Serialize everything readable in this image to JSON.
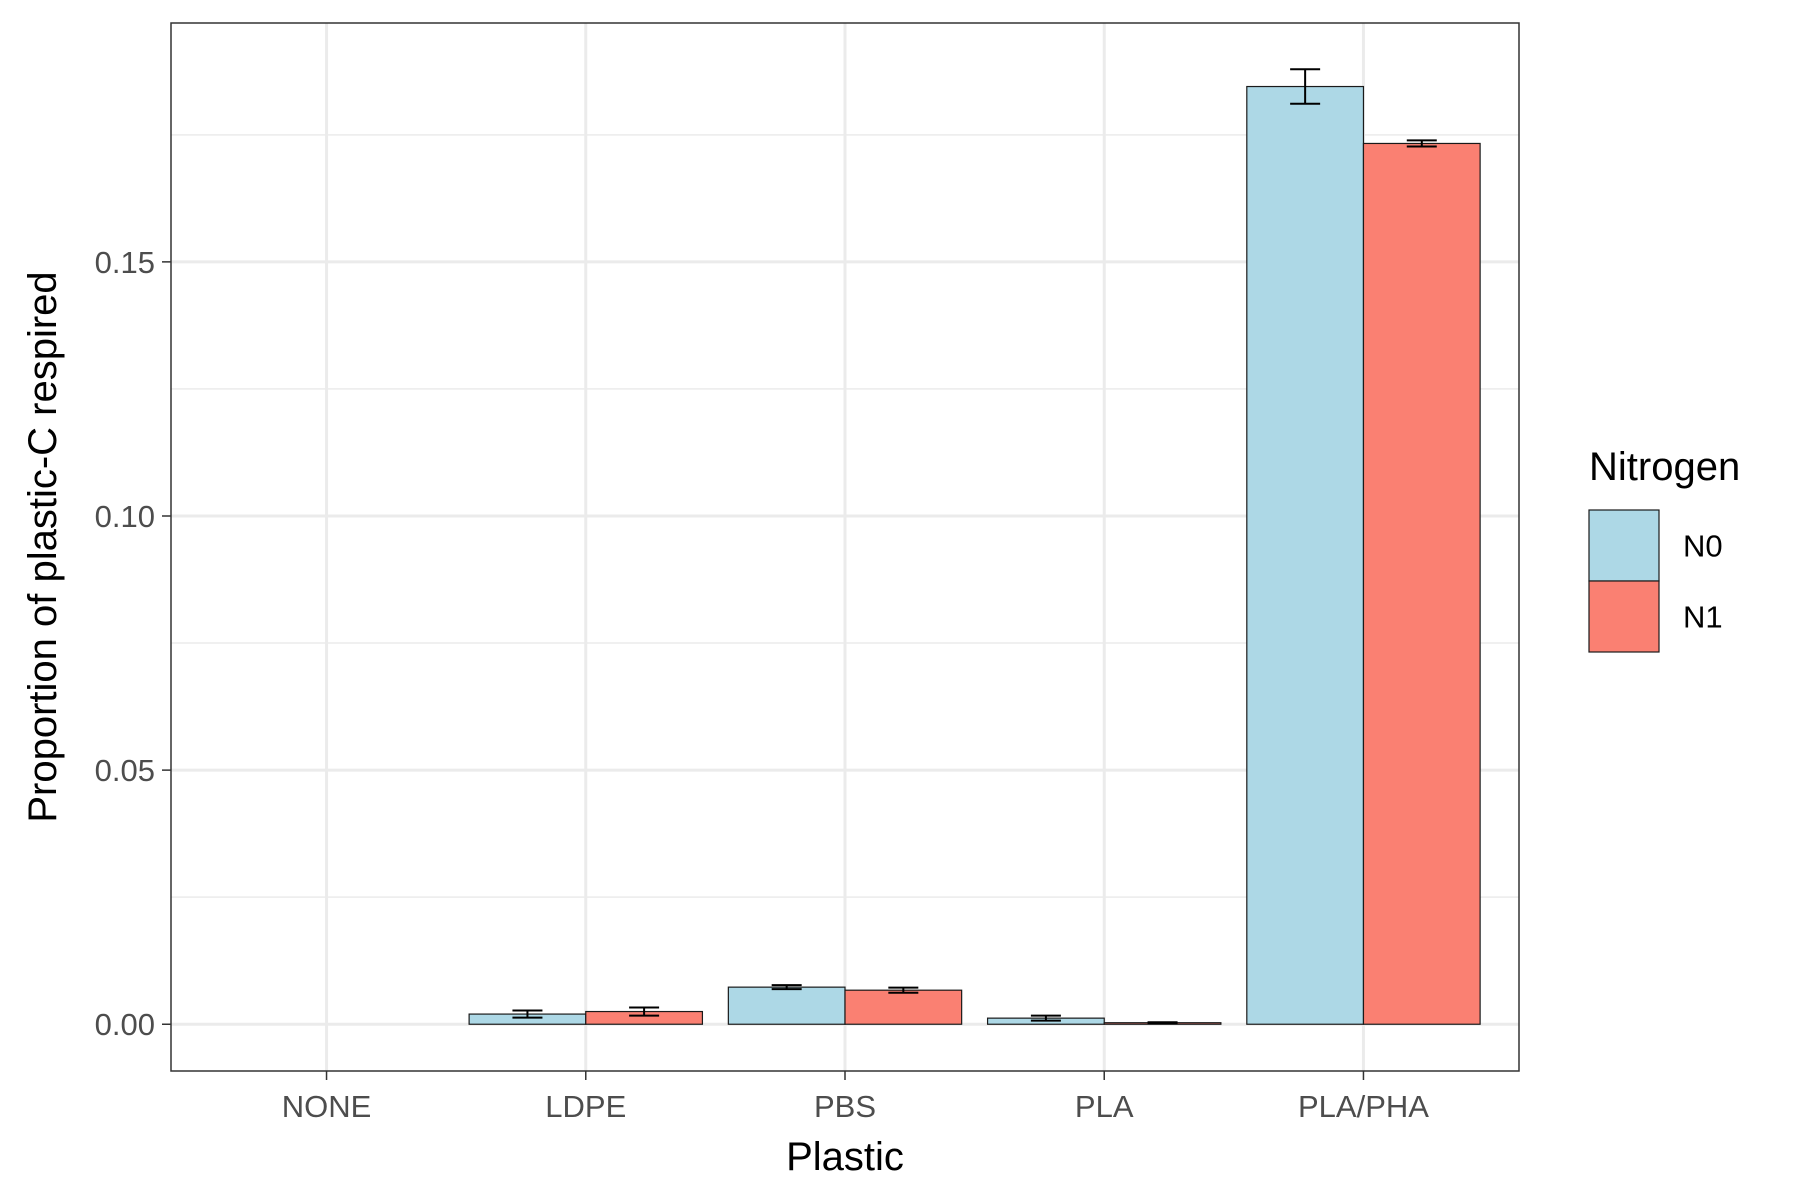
{
  "chart_data": {
    "type": "bar",
    "xlabel": "Plastic",
    "ylabel": "Proportion of plastic-C respired",
    "categories": [
      "NONE",
      "LDPE",
      "PBS",
      "PLA",
      "PLA/PHA"
    ],
    "ylim": [
      -0.0092,
      0.197
    ],
    "yticks": [
      0.0,
      0.05,
      0.1,
      0.15
    ],
    "ytick_labels": [
      "0.00",
      "0.05",
      "0.10",
      "0.15"
    ],
    "grid": true,
    "legend": {
      "title": "Nitrogen",
      "position": "right"
    },
    "series": [
      {
        "name": "N0",
        "color": "#add8e6",
        "values": [
          null,
          0.002,
          0.0073,
          0.0012,
          0.1845
        ],
        "errors": [
          null,
          0.0007,
          0.0004,
          0.0005,
          0.0034
        ]
      },
      {
        "name": "N1",
        "color": "#fa8072",
        "values": [
          null,
          0.0025,
          0.0067,
          0.0003,
          0.1733
        ],
        "errors": [
          null,
          0.0008,
          0.0005,
          0.0001,
          0.0006
        ]
      }
    ]
  }
}
